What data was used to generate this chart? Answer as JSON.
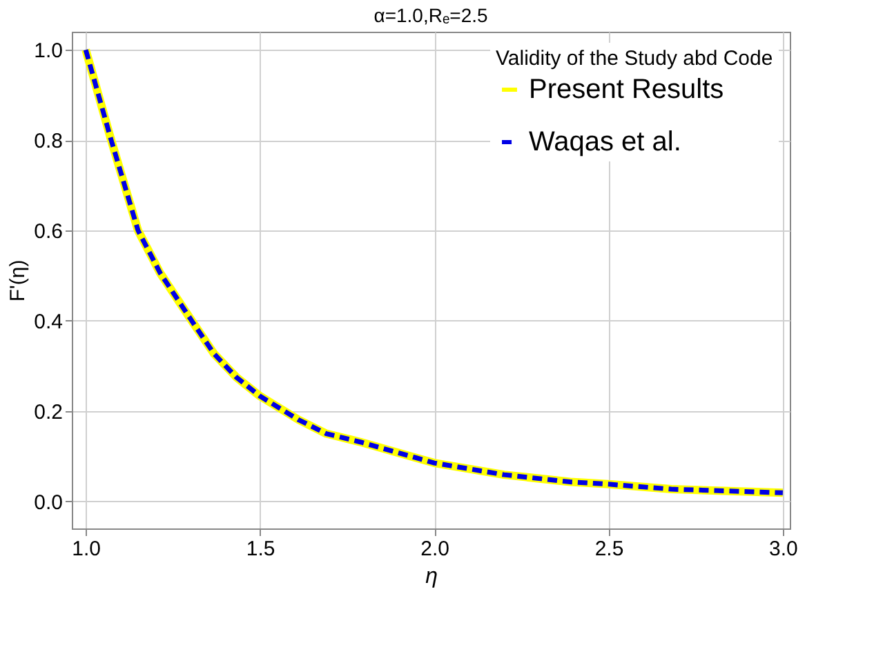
{
  "chart_data": {
    "type": "line",
    "title": "α=1.0,Rₑ=2.5",
    "xlabel": "η",
    "ylabel": "F'(η)",
    "legend_title": "Validity of the Study abd Code",
    "x": [
      1.0,
      1.073,
      1.15,
      1.214,
      1.304,
      1.368,
      1.432,
      1.5,
      1.61,
      1.69,
      1.79,
      1.945,
      2.0,
      2.2,
      2.39,
      2.5,
      2.68,
      3.0
    ],
    "series": [
      {
        "name": "Present Results",
        "color": "#ffff00",
        "line_style": "solid",
        "values": [
          1.0,
          0.8,
          0.6,
          0.505,
          0.4,
          0.327,
          0.275,
          0.233,
          0.181,
          0.15,
          0.131,
          0.097,
          0.085,
          0.059,
          0.043,
          0.038,
          0.027,
          0.019
        ]
      },
      {
        "name": "Waqas et al.",
        "color": "#0000e6",
        "line_style": "dashed",
        "values": [
          1.0,
          0.8,
          0.6,
          0.505,
          0.4,
          0.327,
          0.275,
          0.233,
          0.181,
          0.15,
          0.131,
          0.097,
          0.085,
          0.059,
          0.043,
          0.038,
          0.027,
          0.019
        ]
      }
    ],
    "xlim": [
      0.96,
      3.02
    ],
    "ylim": [
      -0.06,
      1.04
    ],
    "xticks": [
      {
        "value": 1,
        "label": "1.0"
      },
      1.5,
      {
        "value": 2,
        "label": "2.0"
      },
      2.5,
      {
        "value": 3,
        "label": "3.0"
      }
    ],
    "yticks": [
      {
        "value": 0,
        "label": "0.0"
      },
      0.2,
      0.4,
      0.6,
      0.8,
      {
        "value": 1,
        "label": "1.0"
      }
    ],
    "grid": true,
    "legend": "top right",
    "marker": "none"
  }
}
